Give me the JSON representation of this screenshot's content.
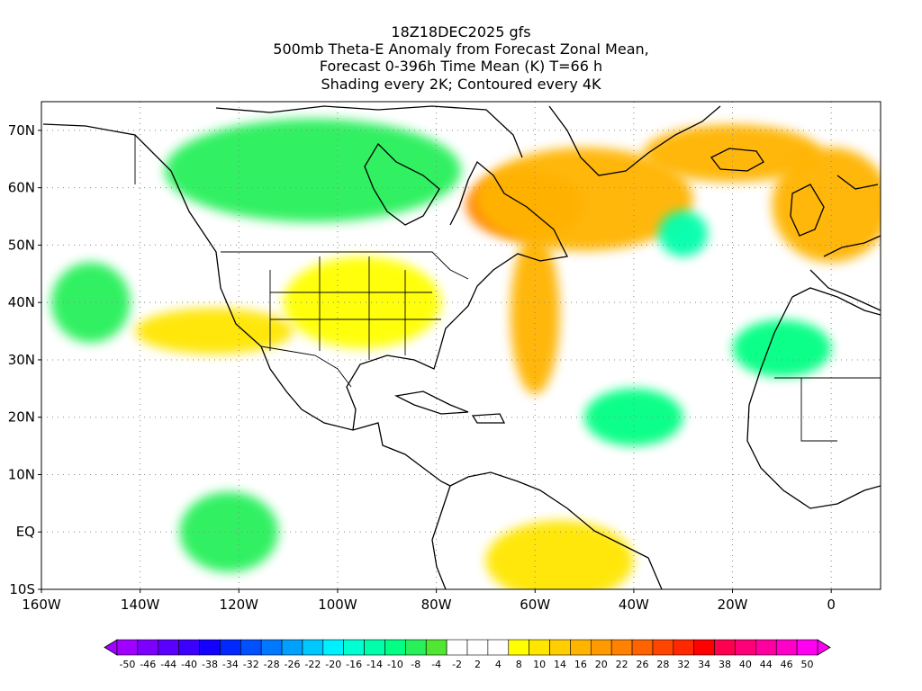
{
  "header": {
    "line1": "18Z18DEC2025 gfs",
    "line2": "500mb Theta-E Anomaly from Forecast Zonal Mean,",
    "line3": "Forecast 0-396h Time Mean (K) T=66 h",
    "line4": "Shading every 2K; Contoured every 4K"
  },
  "map": {
    "lon_range": [
      -160,
      10
    ],
    "lat_range": [
      -10,
      75
    ],
    "lon_ticks": [
      {
        "value": -160,
        "label": "160W"
      },
      {
        "value": -140,
        "label": "140W"
      },
      {
        "value": -120,
        "label": "120W"
      },
      {
        "value": -100,
        "label": "100W"
      },
      {
        "value": -80,
        "label": "80W"
      },
      {
        "value": -60,
        "label": "60W"
      },
      {
        "value": -40,
        "label": "40W"
      },
      {
        "value": -20,
        "label": "20W"
      },
      {
        "value": 0,
        "label": "0"
      }
    ],
    "lat_ticks": [
      {
        "value": 70,
        "label": "70N"
      },
      {
        "value": 60,
        "label": "60N"
      },
      {
        "value": 50,
        "label": "50N"
      },
      {
        "value": 40,
        "label": "40N"
      },
      {
        "value": 30,
        "label": "30N"
      },
      {
        "value": 20,
        "label": "20N"
      },
      {
        "value": 10,
        "label": "10N"
      },
      {
        "value": 0,
        "label": "EQ"
      },
      {
        "value": -10,
        "label": "10S"
      }
    ],
    "grid": "dotted"
  },
  "colorbar": {
    "labels": [
      "-50",
      "-46",
      "-44",
      "-40",
      "-38",
      "-34",
      "-32",
      "-28",
      "-26",
      "-22",
      "-20",
      "-16",
      "-14",
      "-10",
      "-8",
      "-4",
      "-2",
      "2",
      "4",
      "8",
      "10",
      "14",
      "16",
      "20",
      "22",
      "26",
      "28",
      "32",
      "34",
      "38",
      "40",
      "44",
      "46",
      "50"
    ],
    "colors": [
      "#a000ff",
      "#7d00ff",
      "#5a00ff",
      "#3c00ff",
      "#1400ff",
      "#0028ff",
      "#0050ff",
      "#0078ff",
      "#00a0ff",
      "#00c8ff",
      "#00f0ff",
      "#00ffd2",
      "#00ffaa",
      "#00ff82",
      "#28f05a",
      "#50e632",
      "#ffffff",
      "#ffffff",
      "#ffffff",
      "#ffff00",
      "#ffe600",
      "#ffcd00",
      "#ffb400",
      "#ff9b00",
      "#ff8200",
      "#ff6400",
      "#ff4600",
      "#ff2800",
      "#ff0000",
      "#ff0050",
      "#ff0078",
      "#ff00a0",
      "#ff00c8",
      "#ff00f0"
    ]
  },
  "anomaly_fields": [
    {
      "name": "labrador-warm",
      "value": 24,
      "lon": -62,
      "lat": 57,
      "rx": 12,
      "ry": 6
    },
    {
      "name": "n-atlantic-warm",
      "value": 18,
      "lon": -50,
      "lat": 58,
      "rx": 22,
      "ry": 9
    },
    {
      "name": "atlantic-plume",
      "value": 16,
      "lon": -60,
      "lat": 38,
      "rx": 5,
      "ry": 14
    },
    {
      "name": "iceland-warm",
      "value": 16,
      "lon": -20,
      "lat": 66,
      "rx": 18,
      "ry": 5
    },
    {
      "name": "europe-warm",
      "value": 16,
      "lon": 0,
      "lat": 57,
      "rx": 12,
      "ry": 10
    },
    {
      "name": "s-america-warm",
      "value": 12,
      "lon": -55,
      "lat": -5,
      "rx": 15,
      "ry": 7
    },
    {
      "name": "central-us-warm",
      "value": 8,
      "lon": -95,
      "lat": 40,
      "rx": 16,
      "ry": 8
    },
    {
      "name": "pacific-plume",
      "value": 12,
      "lon": -125,
      "lat": 35,
      "rx": 16,
      "ry": 4
    },
    {
      "name": "canada-cold",
      "value": -8,
      "lon": -105,
      "lat": 63,
      "rx": 30,
      "ry": 9
    },
    {
      "name": "mid-atlantic-cold",
      "value": -10,
      "lon": -40,
      "lat": 20,
      "rx": 10,
      "ry": 5
    },
    {
      "name": "pacific-cold",
      "value": -8,
      "lon": -150,
      "lat": 40,
      "rx": 8,
      "ry": 7
    },
    {
      "name": "tropical-pacific-cold",
      "value": -8,
      "lon": -122,
      "lat": 0,
      "rx": 10,
      "ry": 7
    },
    {
      "name": "north-africa-cold",
      "value": -10,
      "lon": -10,
      "lat": 32,
      "rx": 10,
      "ry": 5
    },
    {
      "name": "ne-atlantic-cold",
      "value": -12,
      "lon": -30,
      "lat": 52,
      "rx": 5,
      "ry": 4
    }
  ]
}
